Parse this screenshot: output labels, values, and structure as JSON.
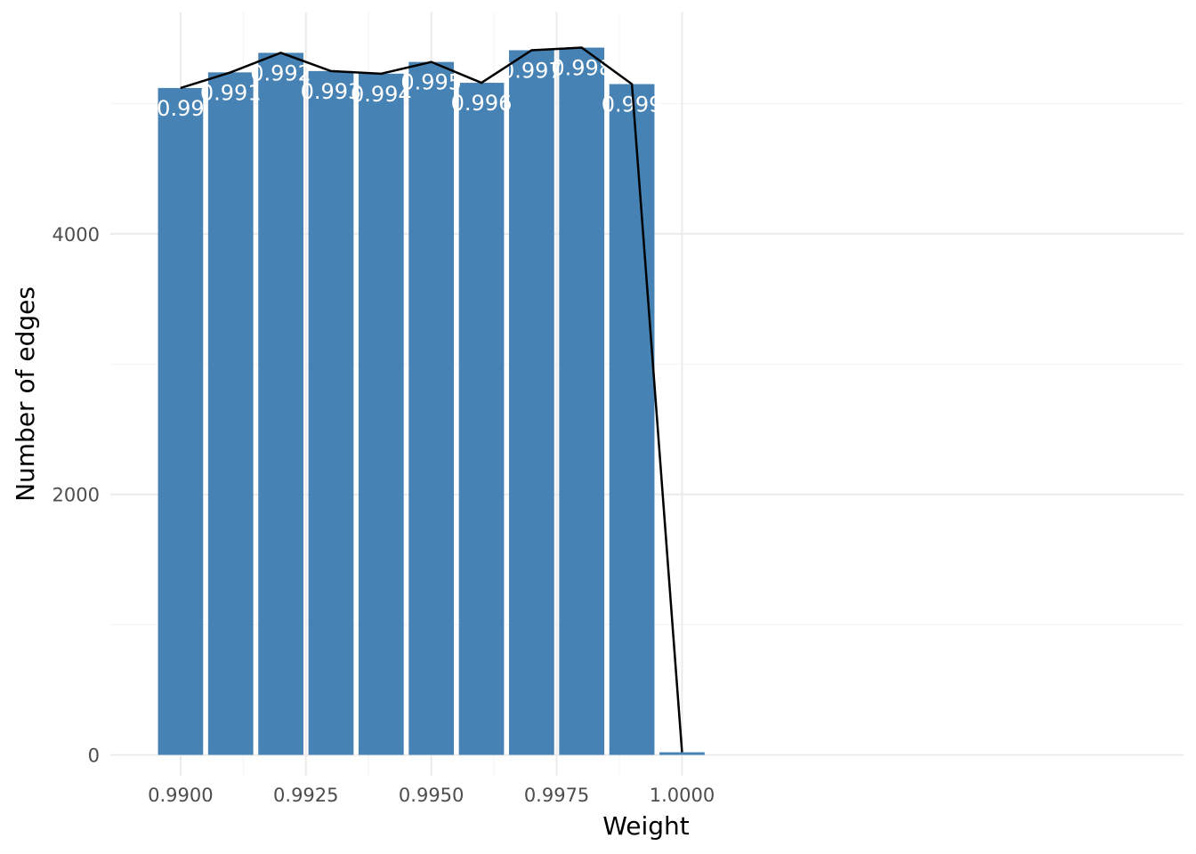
{
  "chart_data": {
    "type": "bar",
    "title": "",
    "xlabel": "Weight",
    "ylabel": "Number of edges",
    "x": [
      0.99,
      0.991,
      0.992,
      0.993,
      0.994,
      0.995,
      0.996,
      0.997,
      0.998,
      0.999,
      1.0
    ],
    "values": [
      5120,
      5240,
      5390,
      5250,
      5230,
      5320,
      5160,
      5410,
      5430,
      5150,
      20
    ],
    "bar_labels": [
      "0.99",
      "0.991",
      "0.992",
      "0.993",
      "0.994",
      "0.995",
      "0.996",
      "0.997",
      "0.998",
      "0.999",
      ""
    ],
    "overlay_line": {
      "x": [
        0.99,
        0.991,
        0.992,
        0.993,
        0.994,
        0.995,
        0.996,
        0.997,
        0.998,
        0.999,
        1.0
      ],
      "y": [
        5120,
        5240,
        5390,
        5250,
        5230,
        5320,
        5160,
        5410,
        5430,
        5150,
        20
      ]
    },
    "xlim": [
      0.9886,
      1.01
    ],
    "ylim": [
      -160,
      5700
    ],
    "x_ticks": [
      0.99,
      0.9925,
      0.995,
      0.9975,
      1.0
    ],
    "x_tick_labels": [
      "0.9900",
      "0.9925",
      "0.9950",
      "0.9975",
      "1.0000"
    ],
    "y_ticks": [
      0,
      2000,
      4000
    ],
    "y_tick_labels": [
      "0",
      "2000",
      "4000"
    ],
    "grid": true,
    "colors": {
      "bar": "#4682b4",
      "line": "#000000",
      "label": "#ffffff"
    }
  }
}
